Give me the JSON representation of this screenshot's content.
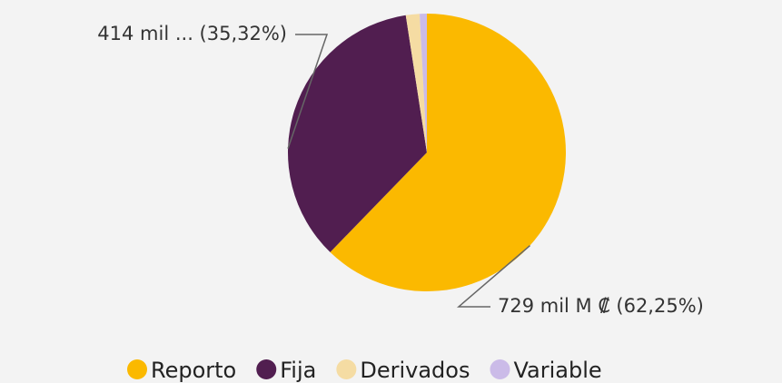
{
  "chart_data": {
    "type": "pie",
    "categories": [
      "Reporto",
      "Fija",
      "Derivados",
      "Variable"
    ],
    "values": [
      62.25,
      35.32,
      1.6,
      0.83
    ],
    "value_labels": [
      "729 mil M ₡ (62,25%)",
      "414 mil ... (35,32%)",
      null,
      null
    ],
    "colors": [
      "#fbb900",
      "#511e50",
      "#f5dca3",
      "#cbbbe8"
    ],
    "legend": "bottom"
  }
}
